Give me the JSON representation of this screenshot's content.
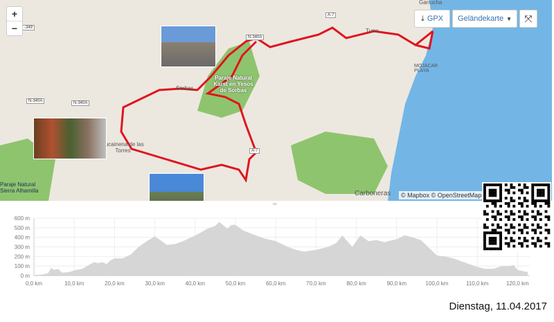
{
  "map": {
    "zoom_in": "+",
    "zoom_out": "−",
    "gpx_label": "GPX",
    "gpx_icon": "download-icon",
    "layer_label": "Geländekarte",
    "fullscreen_icon": "expand-icon",
    "attribution": "© Mapbox © OpenStreetMap",
    "places": [
      "Garrucha",
      "Turre",
      "MOJÁCAR PLAYA",
      "Sorbas",
      "Paraje Natural Karst en Yesos de Sorbas",
      "Lucainena de las Torres",
      "Carboneras",
      "Paraje Natural Sierra Alhamilla"
    ],
    "roads": [
      "A-7",
      "N-340A",
      "N-340A",
      "N-340A",
      "A-7",
      "-349"
    ],
    "colors": {
      "route": "#e0141e",
      "sea": "#73b6e6",
      "land": "#ece8e0",
      "park": "#8fc46e"
    }
  },
  "elevation": {
    "y_ticks": [
      "0 m",
      "100 m",
      "200 m",
      "300 m",
      "400 m",
      "500 m",
      "600 m"
    ],
    "x_ticks": [
      "0,0 km",
      "10,0 km",
      "20,0 km",
      "30,0 km",
      "40,0 km",
      "50,0 km",
      "60,0 km",
      "70,0 km",
      "80,0 km",
      "90,0 km",
      "100,0 km",
      "110,0 km",
      "120,0 km"
    ],
    "ylim": [
      0,
      600
    ],
    "xlim_km": [
      0,
      122.5
    ],
    "profile_km_m": [
      [
        0,
        5
      ],
      [
        2,
        10
      ],
      [
        3.5,
        25
      ],
      [
        4.3,
        80
      ],
      [
        5,
        60
      ],
      [
        6,
        70
      ],
      [
        7,
        30
      ],
      [
        8,
        35
      ],
      [
        9,
        40
      ],
      [
        10,
        55
      ],
      [
        12,
        70
      ],
      [
        14,
        120
      ],
      [
        15,
        140
      ],
      [
        16,
        130
      ],
      [
        17,
        140
      ],
      [
        18,
        120
      ],
      [
        19,
        160
      ],
      [
        20,
        180
      ],
      [
        22,
        180
      ],
      [
        24,
        220
      ],
      [
        26,
        300
      ],
      [
        28,
        360
      ],
      [
        30,
        410
      ],
      [
        33,
        320
      ],
      [
        35,
        330
      ],
      [
        37,
        360
      ],
      [
        39,
        400
      ],
      [
        41,
        440
      ],
      [
        43,
        490
      ],
      [
        45,
        520
      ],
      [
        46,
        560
      ],
      [
        48,
        490
      ],
      [
        49,
        530
      ],
      [
        50,
        530
      ],
      [
        52,
        470
      ],
      [
        55,
        420
      ],
      [
        57,
        390
      ],
      [
        60,
        360
      ],
      [
        62,
        320
      ],
      [
        63,
        300
      ],
      [
        65,
        270
      ],
      [
        67,
        250
      ],
      [
        70,
        270
      ],
      [
        73,
        300
      ],
      [
        75,
        340
      ],
      [
        76.5,
        420
      ],
      [
        79,
        300
      ],
      [
        81,
        420
      ],
      [
        83,
        360
      ],
      [
        85,
        370
      ],
      [
        87,
        350
      ],
      [
        90,
        380
      ],
      [
        92,
        420
      ],
      [
        94,
        400
      ],
      [
        96,
        370
      ],
      [
        98,
        290
      ],
      [
        100,
        210
      ],
      [
        102,
        200
      ],
      [
        104,
        180
      ],
      [
        106,
        150
      ],
      [
        108,
        120
      ],
      [
        110,
        90
      ],
      [
        112,
        70
      ],
      [
        114,
        70
      ],
      [
        116,
        100
      ],
      [
        118,
        100
      ],
      [
        119,
        110
      ],
      [
        120,
        60
      ],
      [
        122,
        40
      ],
      [
        122.5,
        40
      ]
    ]
  },
  "date": "Dienstag, 11.04.2017"
}
